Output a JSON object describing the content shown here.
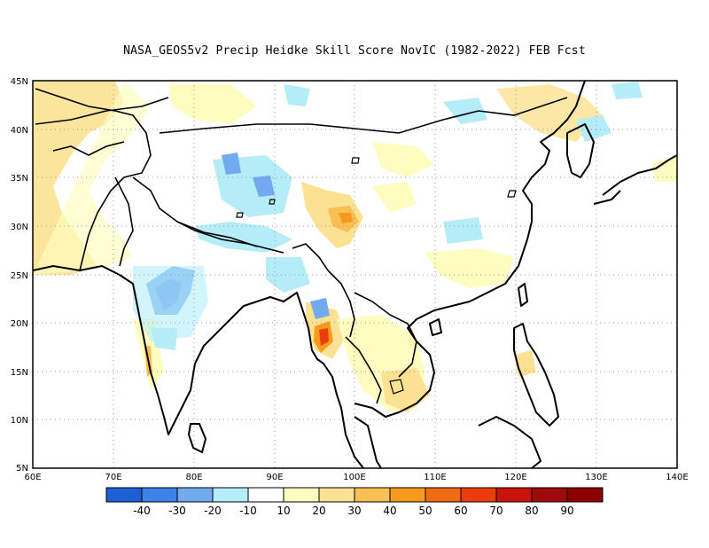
{
  "title": "NASA_GEOS5v2 Precip Heidke Skill Score NovIC (1982-2022) FEB Fcst",
  "map": {
    "lon_range": [
      60,
      140
    ],
    "lat_range": [
      5,
      45
    ],
    "x_ticks": [
      "60E",
      "70E",
      "80E",
      "90E",
      "100E",
      "110E",
      "120E",
      "130E",
      "140E"
    ],
    "y_ticks": [
      "5N",
      "10N",
      "15N",
      "20N",
      "25N",
      "30N",
      "35N",
      "40N",
      "45N"
    ],
    "grid": true
  },
  "colorbar": {
    "labels": [
      "-40",
      "-30",
      "-20",
      "-10",
      "10",
      "20",
      "30",
      "40",
      "50",
      "60",
      "70",
      "80",
      "90"
    ],
    "colors": [
      "#1e5fd6",
      "#3c82e8",
      "#72aaf0",
      "#b4ecf8",
      "#ffffff",
      "#fffcc0",
      "#fbe191",
      "#f8bf53",
      "#f69a1e",
      "#f26b14",
      "#eb3c0b",
      "#c8140a",
      "#a00a0a",
      "#8c0000"
    ]
  }
}
